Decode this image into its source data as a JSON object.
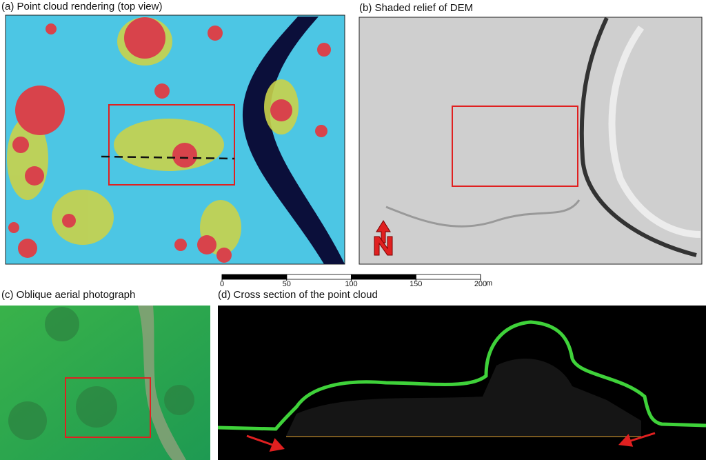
{
  "panels": [
    {
      "title": "(a) Point cloud rendering (top view)"
    },
    {
      "title": "(b) Shaded relief of DEM"
    },
    {
      "title": "(c) Oblique aerial photograph"
    },
    {
      "title": "(d) Cross section of the point cloud"
    }
  ],
  "scale_bar": {
    "ticks": [
      0,
      50,
      100,
      150,
      200
    ],
    "unit": "m"
  }
}
